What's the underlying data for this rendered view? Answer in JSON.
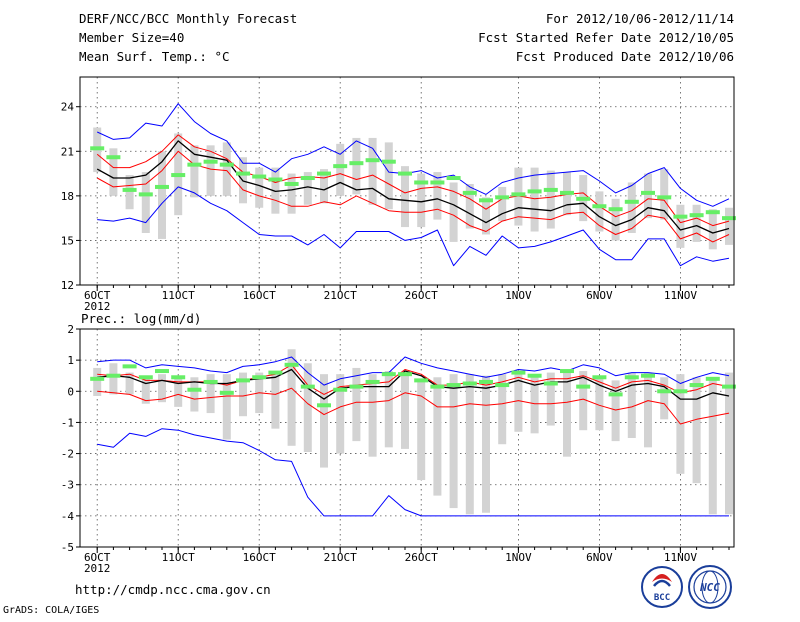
{
  "header": {
    "title": "DERF/NCC/BCC Monthly Forecast",
    "member_size": "Member Size=40",
    "variable": "Mean Surf. Temp.: °C",
    "for_period": "For 2012/10/06-2012/11/14",
    "fcst_started": "Fcst Started Refer Date 2012/10/05",
    "fcst_produced": "Fcst Produced Date 2012/10/06"
  },
  "footer": {
    "url": "http://cmdp.ncc.cma.gov.cn",
    "grads": "GrADS: COLA/IGES",
    "logo_bcc": "BCC",
    "logo_ncc": "NCC"
  },
  "colors": {
    "max_min": "#0000ff",
    "quartile": "#ff0000",
    "mean": "#000000",
    "spread": "#d3d3d3",
    "median": "#66ee66"
  },
  "chart_data": [
    {
      "type": "line",
      "title": "Mean Surf. Temp.: °C",
      "x_tick_labels": [
        "6OCT",
        "11OCT",
        "16OCT",
        "21OCT",
        "26OCT",
        "1NOV",
        "6NOV",
        "11NOV"
      ],
      "x_tick_days": [
        1,
        6,
        11,
        16,
        21,
        27,
        32,
        37
      ],
      "year_label": "2012",
      "ylim": [
        12,
        26
      ],
      "yticks": [
        12,
        15,
        18,
        21,
        24
      ],
      "days": [
        1,
        2,
        3,
        4,
        5,
        6,
        7,
        8,
        9,
        10,
        11,
        12,
        13,
        14,
        15,
        16,
        17,
        18,
        19,
        20,
        21,
        22,
        23,
        24,
        25,
        26,
        27,
        28,
        29,
        30,
        31,
        32,
        33,
        34,
        35,
        36,
        37,
        38,
        39,
        40
      ],
      "series": [
        {
          "name": "max",
          "color": "#0000ff",
          "values": [
            22.3,
            21.8,
            21.9,
            22.9,
            22.7,
            24.2,
            23.0,
            22.2,
            21.7,
            20.2,
            20.2,
            19.6,
            20.5,
            20.8,
            21.3,
            20.8,
            21.7,
            21.2,
            19.6,
            19.5,
            19.7,
            19.2,
            19.4,
            18.6,
            18.1,
            18.9,
            19.2,
            19.4,
            19.5,
            19.6,
            19.7,
            19.0,
            18.2,
            18.7,
            19.5,
            19.9,
            18.5,
            17.7,
            17.3,
            17.8
          ]
        },
        {
          "name": "upper_quartile",
          "color": "#ff0000",
          "values": [
            20.8,
            19.9,
            19.9,
            20.3,
            21.0,
            22.1,
            21.3,
            21.0,
            20.5,
            19.6,
            19.3,
            18.9,
            19.2,
            19.3,
            19.2,
            19.5,
            19.1,
            19.4,
            18.8,
            18.2,
            18.5,
            18.6,
            18.3,
            17.8,
            17.1,
            17.8,
            18.0,
            17.8,
            17.9,
            18.1,
            18.2,
            17.3,
            16.6,
            17.0,
            17.8,
            17.7,
            16.2,
            16.5,
            16.0,
            16.3
          ]
        },
        {
          "name": "mean",
          "color": "#000000",
          "values": [
            19.8,
            19.2,
            19.2,
            19.4,
            20.3,
            21.7,
            20.8,
            20.6,
            20.4,
            19.0,
            18.7,
            18.3,
            18.4,
            18.6,
            18.4,
            18.9,
            18.4,
            18.5,
            17.8,
            17.7,
            17.6,
            17.8,
            17.4,
            16.8,
            16.2,
            16.8,
            17.2,
            17.1,
            17.0,
            17.4,
            17.5,
            16.6,
            16.0,
            16.4,
            17.2,
            17.0,
            15.7,
            16.0,
            15.5,
            15.8
          ]
        },
        {
          "name": "lower_quartile",
          "color": "#ff0000",
          "values": [
            19.2,
            18.6,
            18.7,
            18.8,
            19.7,
            21.0,
            20.1,
            19.8,
            19.7,
            18.4,
            18.0,
            17.7,
            17.3,
            17.3,
            17.6,
            17.4,
            18.0,
            17.5,
            17.0,
            16.9,
            16.9,
            17.1,
            16.7,
            16.0,
            15.6,
            16.3,
            16.6,
            16.5,
            16.4,
            16.8,
            16.9,
            16.0,
            15.4,
            15.8,
            16.7,
            16.5,
            15.1,
            15.5,
            14.9,
            15.4
          ]
        },
        {
          "name": "min",
          "color": "#0000ff",
          "values": [
            16.4,
            16.3,
            16.5,
            16.2,
            17.5,
            18.6,
            18.2,
            17.5,
            17.0,
            16.2,
            15.4,
            15.3,
            15.3,
            14.7,
            15.4,
            14.5,
            15.6,
            15.6,
            15.6,
            15.0,
            15.2,
            15.7,
            13.3,
            14.6,
            14.0,
            15.3,
            14.5,
            14.6,
            14.9,
            15.3,
            15.7,
            14.4,
            13.7,
            13.7,
            15.1,
            15.1,
            13.3,
            13.9,
            13.6,
            13.8
          ]
        },
        {
          "name": "median",
          "color": "#66ee66",
          "values": [
            21.2,
            20.6,
            18.4,
            18.1,
            18.6,
            19.4,
            20.1,
            20.3,
            20.1,
            19.5,
            19.3,
            19.1,
            18.8,
            19.2,
            19.5,
            20.0,
            20.2,
            20.4,
            20.3,
            19.5,
            18.9,
            18.9,
            19.2,
            18.2,
            17.7,
            17.9,
            18.1,
            18.3,
            18.4,
            18.2,
            17.8,
            17.3,
            17.1,
            17.6,
            18.2,
            17.9,
            16.6,
            16.7,
            16.9,
            16.5
          ]
        },
        {
          "name": "spread_top",
          "color": "#d3d3d3",
          "values": [
            22.6,
            21.2,
            19.4,
            19.6,
            21.0,
            22.2,
            21.4,
            21.4,
            21.6,
            20.6,
            19.9,
            19.9,
            19.5,
            19.6,
            19.8,
            21.5,
            21.9,
            21.9,
            21.6,
            20.0,
            19.5,
            19.6,
            18.9,
            18.8,
            17.9,
            18.6,
            19.9,
            19.9,
            19.7,
            19.6,
            19.4,
            18.3,
            17.8,
            18.9,
            19.5,
            19.8,
            17.4,
            17.4,
            17.1,
            17.2
          ]
        },
        {
          "name": "spread_bottom",
          "color": "#d3d3d3",
          "values": [
            19.6,
            18.0,
            17.1,
            15.5,
            15.1,
            16.7,
            17.9,
            18.0,
            18.0,
            17.5,
            17.2,
            16.8,
            16.8,
            17.4,
            17.5,
            18.0,
            18.1,
            17.4,
            17.1,
            15.9,
            15.9,
            16.4,
            14.9,
            15.8,
            15.4,
            16.3,
            16.0,
            15.6,
            15.8,
            16.7,
            16.3,
            15.6,
            15.0,
            15.5,
            16.5,
            16.4,
            14.5,
            14.9,
            14.4,
            14.7
          ]
        }
      ]
    },
    {
      "type": "line",
      "title": "Prec.: log(mm/d)",
      "x_tick_labels": [
        "6OCT",
        "11OCT",
        "16OCT",
        "21OCT",
        "26OCT",
        "1NOV",
        "6NOV",
        "11NOV"
      ],
      "x_tick_days": [
        1,
        6,
        11,
        16,
        21,
        27,
        32,
        37
      ],
      "year_label": "2012",
      "ylim": [
        -5,
        2
      ],
      "yticks": [
        -5,
        -4,
        -3,
        -2,
        -1,
        0,
        1,
        2
      ],
      "days": [
        1,
        2,
        3,
        4,
        5,
        6,
        7,
        8,
        9,
        10,
        11,
        12,
        13,
        14,
        15,
        16,
        17,
        18,
        19,
        20,
        21,
        22,
        23,
        24,
        25,
        26,
        27,
        28,
        29,
        30,
        31,
        32,
        33,
        34,
        35,
        36,
        37,
        38,
        39,
        40
      ],
      "series": [
        {
          "name": "max",
          "color": "#0000ff",
          "values": [
            0.95,
            1.0,
            1.0,
            0.75,
            0.85,
            0.8,
            0.75,
            0.65,
            0.6,
            0.8,
            0.85,
            0.95,
            1.1,
            0.6,
            0.2,
            0.4,
            0.5,
            0.6,
            0.6,
            1.1,
            0.9,
            0.75,
            0.65,
            0.55,
            0.45,
            0.55,
            0.7,
            0.65,
            0.75,
            0.65,
            0.85,
            0.75,
            0.5,
            0.6,
            0.6,
            0.55,
            0.25,
            0.45,
            0.6,
            0.5
          ]
        },
        {
          "name": "upper_quartile",
          "color": "#ff0000",
          "values": [
            0.55,
            0.5,
            0.55,
            0.35,
            0.35,
            0.3,
            0.3,
            0.3,
            0.2,
            0.35,
            0.45,
            0.55,
            0.85,
            0.2,
            -0.1,
            0.15,
            0.2,
            0.25,
            0.3,
            0.7,
            0.55,
            0.2,
            0.2,
            0.3,
            0.2,
            0.3,
            0.45,
            0.3,
            0.4,
            0.4,
            0.5,
            0.3,
            0.1,
            0.3,
            0.35,
            0.2,
            -0.05,
            0.05,
            0.25,
            0.15
          ]
        },
        {
          "name": "mean",
          "color": "#000000",
          "values": [
            0.45,
            0.5,
            0.45,
            0.25,
            0.35,
            0.25,
            0.3,
            0.25,
            0.25,
            0.35,
            0.4,
            0.45,
            0.7,
            0.1,
            -0.25,
            0.1,
            0.15,
            0.15,
            0.15,
            0.65,
            0.5,
            0.15,
            0.1,
            0.15,
            0.1,
            0.2,
            0.35,
            0.2,
            0.3,
            0.3,
            0.45,
            0.2,
            0.0,
            0.2,
            0.25,
            0.15,
            -0.25,
            -0.25,
            -0.05,
            -0.15
          ]
        },
        {
          "name": "lower_quartile",
          "color": "#ff0000",
          "values": [
            0.0,
            -0.05,
            -0.1,
            -0.3,
            -0.25,
            -0.1,
            -0.25,
            -0.2,
            -0.15,
            -0.15,
            -0.05,
            -0.1,
            0.1,
            -0.4,
            -0.75,
            -0.5,
            -0.35,
            -0.35,
            -0.3,
            -0.05,
            -0.15,
            -0.5,
            -0.5,
            -0.4,
            -0.45,
            -0.4,
            -0.3,
            -0.4,
            -0.4,
            -0.35,
            -0.25,
            -0.45,
            -0.6,
            -0.5,
            -0.3,
            -0.4,
            -1.05,
            -0.9,
            -0.8,
            -0.7
          ]
        },
        {
          "name": "min",
          "color": "#0000ff",
          "values": [
            -1.7,
            -1.8,
            -1.35,
            -1.45,
            -1.2,
            -1.25,
            -1.4,
            -1.5,
            -1.6,
            -1.65,
            -1.9,
            -2.2,
            -2.25,
            -3.4,
            -4.0,
            -4.0,
            -4.0,
            -4.0,
            -3.35,
            -3.8,
            -4.0,
            -4.0,
            -4.0,
            -4.0,
            -4.0,
            -4.0,
            -4.0,
            -4.0,
            -4.0,
            -4.0,
            -4.0,
            -4.0,
            -4.0,
            -4.0,
            -4.0,
            -4.0,
            -4.0,
            -4.0,
            -4.0,
            -4.0
          ]
        },
        {
          "name": "median",
          "color": "#66ee66",
          "values": [
            0.4,
            0.5,
            0.8,
            0.45,
            0.65,
            0.45,
            0.05,
            0.3,
            -0.05,
            0.35,
            0.45,
            0.6,
            0.85,
            0.15,
            -0.45,
            0.05,
            0.15,
            0.3,
            0.55,
            0.55,
            0.35,
            0.15,
            0.2,
            0.25,
            0.3,
            0.2,
            0.6,
            0.5,
            0.25,
            0.65,
            0.15,
            0.45,
            -0.1,
            0.45,
            0.5,
            0.0,
            0.0,
            0.2,
            0.4,
            0.15
          ]
        },
        {
          "name": "spread_top",
          "color": "#d3d3d3",
          "values": [
            0.75,
            0.9,
            0.6,
            0.4,
            0.55,
            0.5,
            0.45,
            0.55,
            0.55,
            0.6,
            0.6,
            0.6,
            1.35,
            0.9,
            0.55,
            0.55,
            0.75,
            0.55,
            0.65,
            0.5,
            0.3,
            0.45,
            0.55,
            0.55,
            0.5,
            0.55,
            0.55,
            0.55,
            0.6,
            0.65,
            0.65,
            0.5,
            0.35,
            0.6,
            0.6,
            0.45,
            0.55,
            0.45,
            0.45,
            0.6
          ]
        },
        {
          "name": "spread_bottom",
          "color": "#d3d3d3",
          "values": [
            -0.15,
            -0.1,
            -0.1,
            -0.4,
            -0.35,
            -0.5,
            -0.65,
            -0.7,
            -1.55,
            -0.8,
            -0.7,
            -1.2,
            -1.75,
            -1.95,
            -2.45,
            -2.0,
            -1.6,
            -2.1,
            -1.8,
            -1.85,
            -2.85,
            -3.35,
            -3.75,
            -3.95,
            -3.9,
            -1.7,
            -1.3,
            -1.35,
            -1.1,
            -2.1,
            -1.25,
            -1.25,
            -1.6,
            -1.5,
            -1.8,
            -0.9,
            -2.65,
            -2.95,
            -3.95,
            -3.95
          ]
        }
      ]
    }
  ]
}
